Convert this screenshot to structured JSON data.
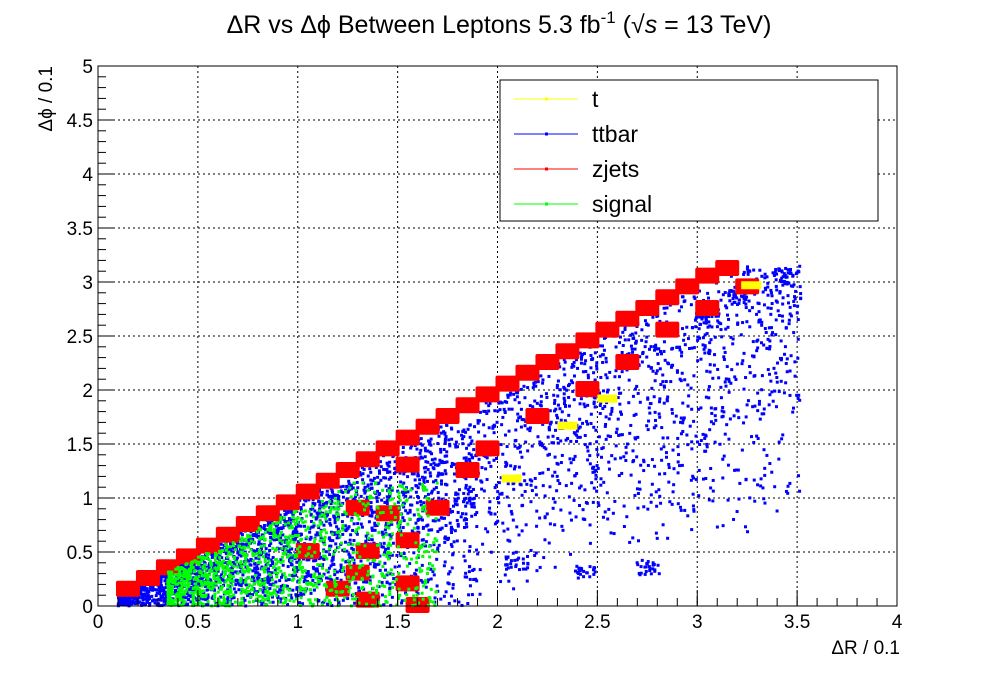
{
  "chart_data": {
    "type": "scatter",
    "title": "ΔR vs Δϕ Between Leptons 5.3 fb",
    "title_sup": "-1",
    "title_paren_open": " (",
    "title_sqrt": "√",
    "title_s": "s",
    "title_energy": " = 13 TeV)",
    "xlabel": "ΔR / 0.1",
    "ylabel": "Δϕ / 0.1",
    "xlim": [
      0,
      4
    ],
    "ylim": [
      0,
      5
    ],
    "xticks": [
      "0",
      "0.5",
      "1",
      "1.5",
      "2",
      "2.5",
      "3",
      "3.5",
      "4"
    ],
    "yticks": [
      "0",
      "0.5",
      "1",
      "1.5",
      "2",
      "2.5",
      "3",
      "3.5",
      "4",
      "4.5",
      "5"
    ],
    "grid": true,
    "legend_position": "top-right",
    "series": [
      {
        "name": "t",
        "color": "#ffff00",
        "points": [
          [
            2.07,
            1.18
          ],
          [
            2.35,
            1.67
          ],
          [
            2.55,
            1.92
          ],
          [
            3.27,
            2.97
          ]
        ]
      },
      {
        "name": "ttbar",
        "color": "#0000ff",
        "region": {
          "x_min": 0.1,
          "x_max": 3.52,
          "slope_max": 0.98,
          "slope_min": 0.5,
          "tail": [
            [
              2.1,
              0.4
            ],
            [
              2.45,
              0.3
            ],
            [
              2.75,
              0.35
            ],
            [
              3.05,
              2.65
            ],
            [
              3.2,
              2.85
            ],
            [
              3.45,
              3.05
            ]
          ]
        }
      },
      {
        "name": "zjets",
        "color": "#ff0000",
        "cells": [
          [
            0.15,
            0.15
          ],
          [
            0.25,
            0.25
          ],
          [
            0.35,
            0.35
          ],
          [
            0.45,
            0.45
          ],
          [
            0.55,
            0.55
          ],
          [
            0.65,
            0.65
          ],
          [
            0.75,
            0.75
          ],
          [
            0.85,
            0.85
          ],
          [
            0.95,
            0.95
          ],
          [
            1.05,
            1.05
          ],
          [
            1.15,
            1.15
          ],
          [
            1.25,
            1.25
          ],
          [
            1.35,
            1.35
          ],
          [
            1.45,
            1.45
          ],
          [
            1.55,
            1.55
          ],
          [
            1.65,
            1.65
          ],
          [
            1.75,
            1.75
          ],
          [
            1.85,
            1.85
          ],
          [
            1.95,
            1.95
          ],
          [
            2.05,
            2.05
          ],
          [
            2.15,
            2.15
          ],
          [
            2.25,
            2.25
          ],
          [
            2.35,
            2.35
          ],
          [
            2.45,
            2.45
          ],
          [
            2.55,
            2.55
          ],
          [
            2.65,
            2.65
          ],
          [
            2.75,
            2.75
          ],
          [
            2.85,
            2.85
          ],
          [
            2.95,
            2.95
          ],
          [
            3.05,
            3.05
          ],
          [
            3.15,
            3.12
          ],
          [
            1.3,
            0.3
          ],
          [
            1.35,
            0.5
          ],
          [
            1.55,
            0.6
          ],
          [
            1.55,
            0.2
          ],
          [
            1.35,
            0.05
          ],
          [
            1.2,
            0.15
          ],
          [
            1.45,
            0.85
          ],
          [
            1.7,
            0.9
          ],
          [
            1.85,
            1.25
          ],
          [
            1.95,
            1.45
          ],
          [
            2.2,
            1.75
          ],
          [
            2.45,
            2.0
          ],
          [
            2.65,
            2.25
          ],
          [
            2.85,
            2.55
          ],
          [
            3.05,
            2.75
          ],
          [
            3.25,
            2.95
          ],
          [
            1.55,
            1.3
          ],
          [
            1.6,
            0.0
          ],
          [
            1.05,
            0.5
          ],
          [
            1.3,
            0.9
          ]
        ]
      },
      {
        "name": "signal",
        "color": "#00ff00",
        "region": {
          "x_min": 0.35,
          "x_max": 1.7,
          "y_max": 1.15
        }
      }
    ]
  }
}
